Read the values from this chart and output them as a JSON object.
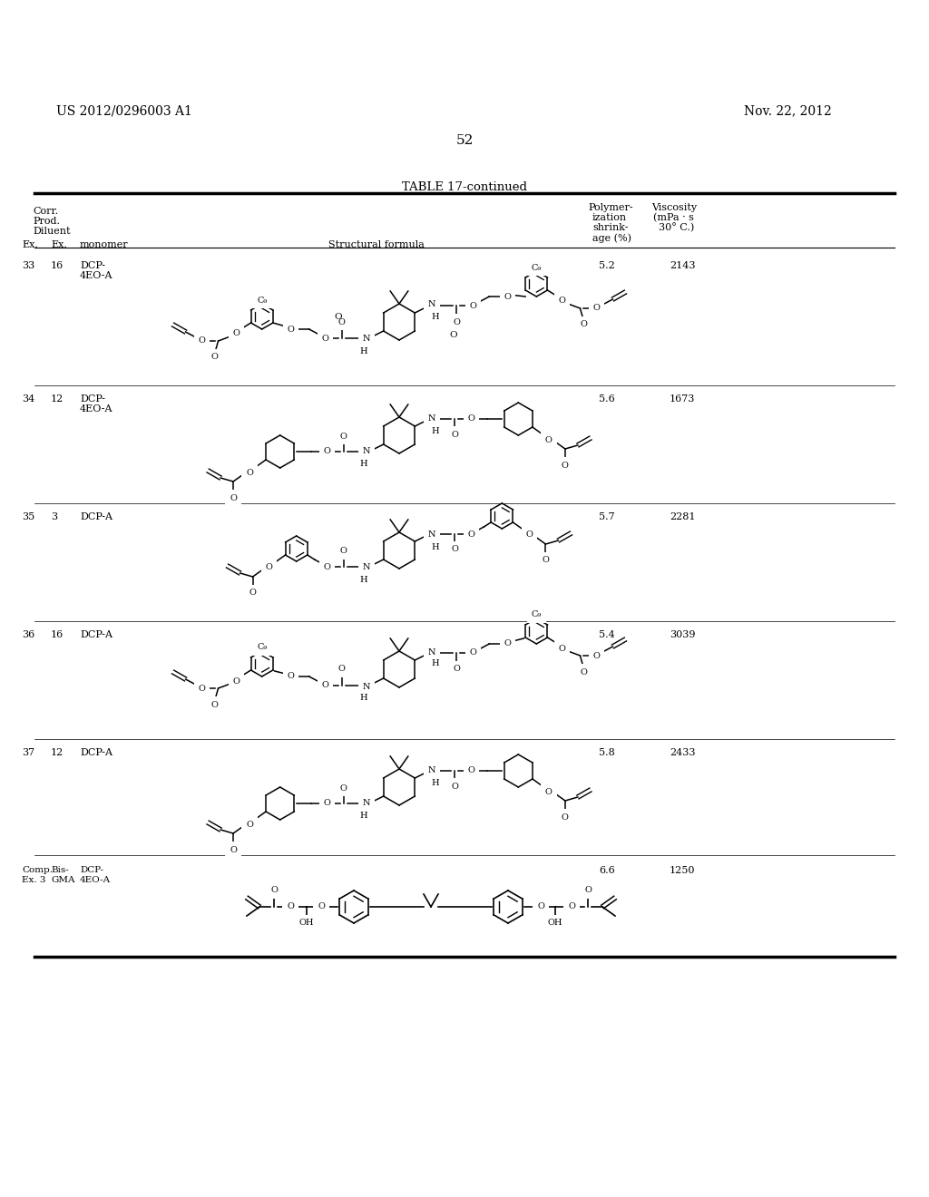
{
  "patent_number": "US 2012/0296003 A1",
  "date": "Nov. 22, 2012",
  "page_number": "52",
  "table_title": "TABLE 17-continued",
  "bg_color": "#ffffff",
  "rows": [
    {
      "ex": "33",
      "prod": "16",
      "diluent": "DCP-\n4EO-A",
      "shrinkage": "5.2",
      "viscosity": "2143"
    },
    {
      "ex": "34",
      "prod": "12",
      "diluent": "DCP-\n4EO-A",
      "shrinkage": "5.6",
      "viscosity": "1673"
    },
    {
      "ex": "35",
      "prod": "3",
      "diluent": "DCP-A",
      "shrinkage": "5.7",
      "viscosity": "2281"
    },
    {
      "ex": "36",
      "prod": "16",
      "diluent": "DCP-A",
      "shrinkage": "5.4",
      "viscosity": "3039"
    },
    {
      "ex": "37",
      "prod": "12",
      "diluent": "DCP-A",
      "shrinkage": "5.8",
      "viscosity": "2433"
    },
    {
      "ex": "Comp.\nEx. 3",
      "prod": "Bis-\nGMA",
      "diluent": "DCP-\n4EO-A",
      "shrinkage": "6.6",
      "viscosity": "1250"
    }
  ]
}
